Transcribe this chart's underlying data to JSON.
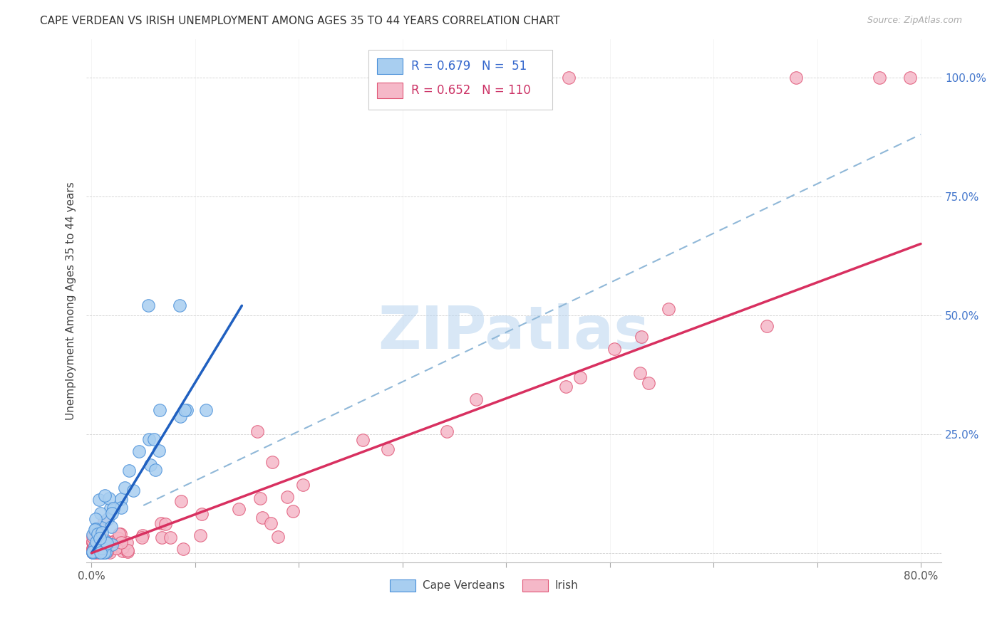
{
  "title": "CAPE VERDEAN VS IRISH UNEMPLOYMENT AMONG AGES 35 TO 44 YEARS CORRELATION CHART",
  "source": "Source: ZipAtlas.com",
  "ylabel": "Unemployment Among Ages 35 to 44 years",
  "xlim": [
    -0.005,
    0.82
  ],
  "ylim": [
    -0.02,
    1.08
  ],
  "xticks": [
    0.0,
    0.1,
    0.2,
    0.3,
    0.4,
    0.5,
    0.6,
    0.7,
    0.8
  ],
  "xticklabels": [
    "0.0%",
    "",
    "",
    "",
    "",
    "",
    "",
    "",
    "80.0%"
  ],
  "ytick_positions": [
    0.0,
    0.25,
    0.5,
    0.75,
    1.0
  ],
  "ytick_labels": [
    "",
    "25.0%",
    "50.0%",
    "75.0%",
    "100.0%"
  ],
  "cv_color": "#a8cef0",
  "irish_color": "#f5b8c8",
  "cv_edge_color": "#4a90d9",
  "irish_edge_color": "#e05878",
  "cv_R": 0.679,
  "cv_N": 51,
  "irish_R": 0.652,
  "irish_N": 110,
  "cv_line_color": "#2060c0",
  "irish_line_color": "#d83060",
  "dash_color": "#90b8d8",
  "watermark": "ZIPatlas",
  "legend_label_cv": "Cape Verdeans",
  "legend_label_irish": "Irish",
  "cv_line_x": [
    0.0,
    0.145
  ],
  "cv_line_y": [
    0.0,
    0.52
  ],
  "irish_line_x": [
    0.0,
    0.8
  ],
  "irish_line_y": [
    0.0,
    0.65
  ],
  "dash_line_x": [
    0.05,
    0.8
  ],
  "dash_line_y": [
    0.1,
    0.88
  ]
}
